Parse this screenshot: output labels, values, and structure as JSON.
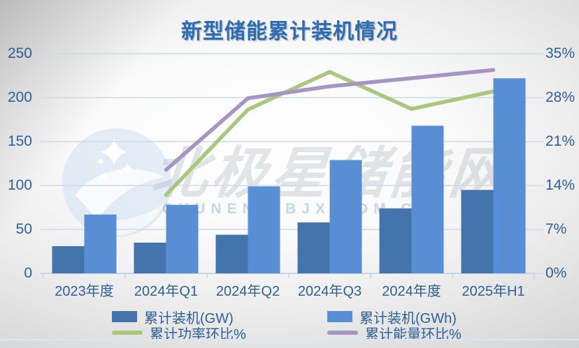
{
  "title": "新型储能累计装机情况",
  "watermark": {
    "brand": "北极星储能网",
    "domain": "CHUNENG.BJX.COM.CN",
    "logo": "star-moon-circle"
  },
  "colors": {
    "bar_gw": "#4375ac",
    "bar_gwh": "#588ed4",
    "line_power": "#a9c87e",
    "line_energy": "#a595c3",
    "grid": "#c9dcee",
    "axis_text": "#2e6096",
    "title_text": "#2b6cb3"
  },
  "legend": {
    "items": [
      {
        "label": "累计装机(GW)",
        "swatch": "bar",
        "color": "#4375ac"
      },
      {
        "label": "累计装机(GWh)",
        "swatch": "bar",
        "color": "#588ed4"
      },
      {
        "label": "累计功率环比%",
        "swatch": "line",
        "color": "#a9c87e"
      },
      {
        "label": "累计能量环比%",
        "swatch": "line",
        "color": "#a595c3"
      }
    ]
  },
  "chart_data": {
    "type": "bar",
    "subtype": "bar-line-combo",
    "title": "新型储能累计装机情况",
    "categories": [
      "2023年度",
      "2024年Q1",
      "2024年Q2",
      "2024年Q3",
      "2024年度",
      "2025年H1"
    ],
    "series": [
      {
        "name": "累计装机(GW)",
        "type": "bar",
        "axis": "left",
        "color": "#4375ac",
        "values": [
          31,
          35,
          44,
          58,
          74,
          95
        ]
      },
      {
        "name": "累计装机(GWh)",
        "type": "bar",
        "axis": "left",
        "color": "#588ed4",
        "values": [
          67,
          78,
          99,
          129,
          168,
          222
        ]
      },
      {
        "name": "累计功率环比%",
        "type": "line",
        "axis": "right",
        "color": "#a9c87e",
        "values": [
          null,
          12.5,
          26.1,
          32.1,
          26.2,
          29.0
        ]
      },
      {
        "name": "累计能量环比%",
        "type": "line",
        "axis": "right",
        "color": "#a595c3",
        "values": [
          null,
          16.5,
          27.9,
          29.8,
          31.1,
          32.4
        ]
      }
    ],
    "left_axis": {
      "min": 0,
      "max": 250,
      "step": 50,
      "ticks": [
        "0",
        "50",
        "100",
        "150",
        "200",
        "250"
      ]
    },
    "right_axis": {
      "min": 0,
      "max": 35,
      "step": 7,
      "ticks": [
        "0%",
        "7%",
        "14%",
        "21%",
        "28%",
        "35%"
      ]
    },
    "grid": true,
    "legend_position": "bottom"
  }
}
